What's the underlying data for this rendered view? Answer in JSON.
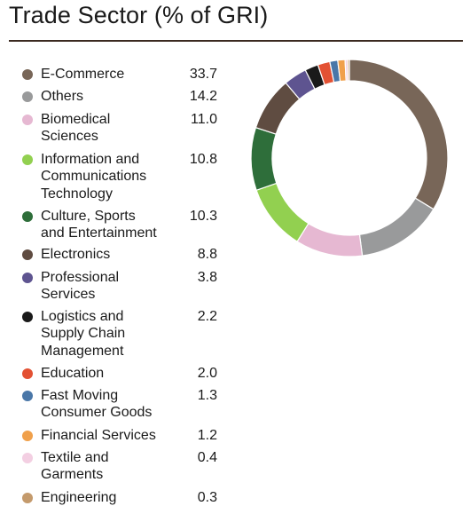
{
  "title": "Trade Sector (% of GRI)",
  "chart_data": {
    "type": "pie",
    "style": "donut",
    "title": "Trade Sector (% of GRI)",
    "legend_position": "left",
    "slices": [
      {
        "label": "E-Commerce",
        "value": 33.7,
        "color": "#786658"
      },
      {
        "label": "Others",
        "value": 14.2,
        "color": "#999a9b"
      },
      {
        "label": "Biomedical Sciences",
        "value": 11.0,
        "color": "#e6b8d2"
      },
      {
        "label": "Information and Communications Technology",
        "value": 10.8,
        "color": "#92d050"
      },
      {
        "label": "Culture, Sports and Entertainment",
        "value": 10.3,
        "color": "#2e6e3a"
      },
      {
        "label": "Electronics",
        "value": 8.8,
        "color": "#5f4c41"
      },
      {
        "label": "Professional Services",
        "value": 3.8,
        "color": "#5e5490"
      },
      {
        "label": "Logistics and Supply Chain Management",
        "value": 2.2,
        "color": "#1a1a1a"
      },
      {
        "label": "Education",
        "value": 2.0,
        "color": "#e35133"
      },
      {
        "label": "Fast Moving Consumer Goods",
        "value": 1.3,
        "color": "#4a77a8"
      },
      {
        "label": "Financial Services",
        "value": 1.2,
        "color": "#f0a04b"
      },
      {
        "label": "Textile and Garments",
        "value": 0.4,
        "color": "#f3cfe2"
      },
      {
        "label": "Engineering",
        "value": 0.3,
        "color": "#c49a6c"
      }
    ]
  }
}
